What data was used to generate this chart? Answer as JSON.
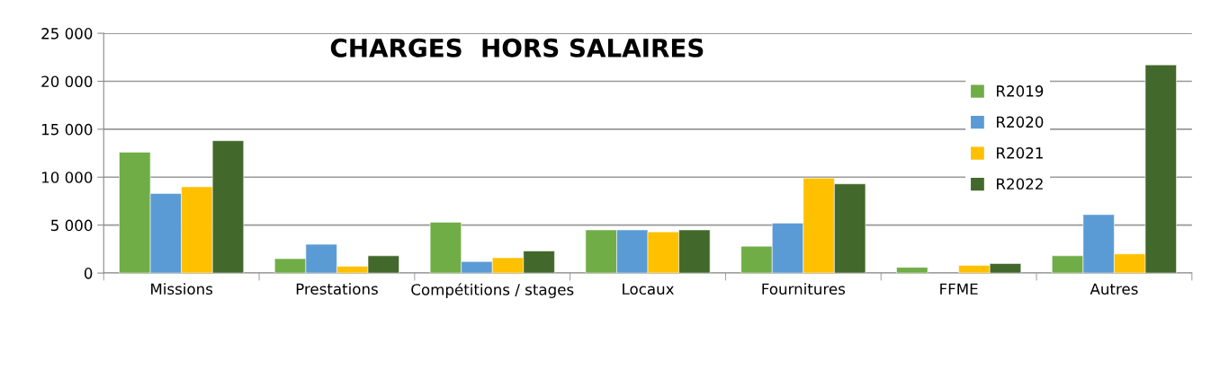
{
  "chart_data": {
    "type": "bar",
    "title": "CHARGES  HORS SALAIRES",
    "categories": [
      "Missions",
      "Prestations",
      "Compétitions / stages",
      "Locaux",
      "Fournitures",
      "FFME",
      "Autres"
    ],
    "series": [
      {
        "name": "R2019",
        "color": "#70ad47",
        "values": [
          12600,
          1500,
          5300,
          4500,
          2800,
          600,
          1800
        ]
      },
      {
        "name": "R2020",
        "color": "#5b9bd5",
        "values": [
          8300,
          3000,
          1200,
          4500,
          5200,
          null,
          6100
        ]
      },
      {
        "name": "R2021",
        "color": "#ffc000",
        "values": [
          9000,
          700,
          1600,
          4300,
          9900,
          800,
          2000
        ]
      },
      {
        "name": "R2022",
        "color": "#43682b",
        "values": [
          13800,
          1800,
          2300,
          4500,
          9300,
          1000,
          21700
        ]
      }
    ],
    "ylim": [
      0,
      25000
    ],
    "yticks": [
      {
        "value": 0,
        "label": "0"
      },
      {
        "value": 5000,
        "label": "5 000"
      },
      {
        "value": 10000,
        "label": "10 000"
      },
      {
        "value": 15000,
        "label": "15 000"
      },
      {
        "value": 20000,
        "label": "20 000"
      },
      {
        "value": 25000,
        "label": "25 000"
      }
    ],
    "grid": "y",
    "legend": "top right"
  }
}
